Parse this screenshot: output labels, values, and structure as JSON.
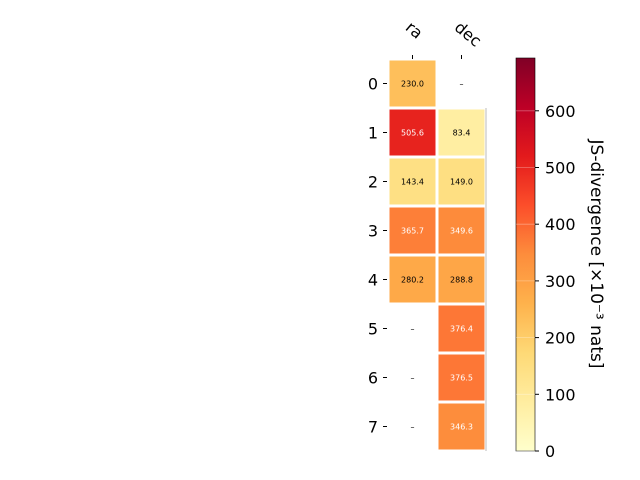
{
  "chart_data": {
    "type": "heatmap",
    "title": "",
    "xlabel": "",
    "ylabel": "",
    "columns": [
      "ra",
      "dec"
    ],
    "rows": [
      "0",
      "1",
      "2",
      "3",
      "4",
      "5",
      "6",
      "7"
    ],
    "values": [
      [
        230.0,
        null
      ],
      [
        505.6,
        83.4
      ],
      [
        143.4,
        149.0
      ],
      [
        365.7,
        349.6
      ],
      [
        280.2,
        288.8
      ],
      [
        null,
        376.4
      ],
      [
        null,
        376.5
      ],
      [
        null,
        346.3
      ]
    ],
    "cell_labels": [
      [
        "230.0",
        "–"
      ],
      [
        "505.6",
        "83.4"
      ],
      [
        "143.4",
        "149.0"
      ],
      [
        "365.7",
        "349.6"
      ],
      [
        "280.2",
        "288.8"
      ],
      [
        "–",
        "376.4"
      ],
      [
        "–",
        "376.5"
      ],
      [
        "–",
        "346.3"
      ]
    ],
    "colormap": "YlOrRd",
    "colormap_stops": [
      "#ffffcc",
      "#ffeda0",
      "#fed976",
      "#feb24c",
      "#fd8d3c",
      "#fc4e2a",
      "#e31a1c",
      "#bd0026",
      "#800026"
    ],
    "colorbar": {
      "label": "JS-divergence [×10⁻³ nats]",
      "range": [
        0,
        693.1
      ],
      "ticks": [
        0,
        100,
        200,
        300,
        400,
        500,
        600
      ],
      "tick_labels": [
        "0",
        "100",
        "200",
        "300",
        "400",
        "500",
        "600"
      ],
      "placement": "right"
    }
  }
}
